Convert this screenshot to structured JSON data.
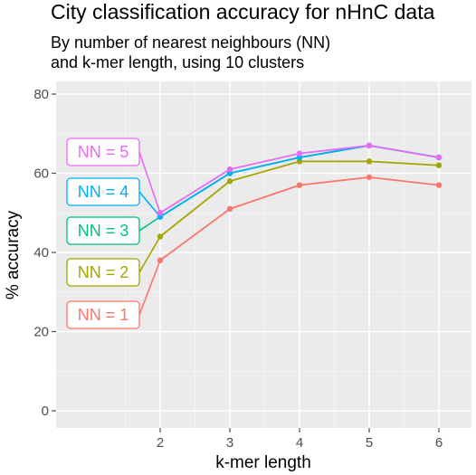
{
  "chart_data": {
    "type": "line",
    "title": "City classification accuracy for nHnC data",
    "subtitle": [
      "By number of nearest neighbours (NN)",
      "and k-mer length, using 10 clusters"
    ],
    "xlabel": "k-mer length",
    "ylabel": "% accuracy",
    "x": [
      2,
      3,
      4,
      5,
      6
    ],
    "x_ticks": [
      "2",
      "3",
      "4",
      "5",
      "6"
    ],
    "y_ticks": [
      "0",
      "20",
      "40",
      "60",
      "80"
    ],
    "ylim": [
      0,
      80
    ],
    "grid": true,
    "legend": "inline labels at left of lines",
    "series": [
      {
        "name": "NN = 1",
        "color": "#F8766D",
        "values": [
          38,
          51,
          57,
          59,
          57
        ]
      },
      {
        "name": "NN = 2",
        "color": "#A3A500",
        "values": [
          44,
          58,
          63,
          63,
          62
        ]
      },
      {
        "name": "NN = 3",
        "color": "#00BF7D",
        "values": [
          49,
          60,
          64,
          67,
          64
        ]
      },
      {
        "name": "NN = 4",
        "color": "#00B0F6",
        "values": [
          49,
          60,
          64,
          67,
          64
        ]
      },
      {
        "name": "NN = 5",
        "color": "#E76BF3",
        "values": [
          50,
          61,
          65,
          67,
          64
        ]
      }
    ]
  }
}
